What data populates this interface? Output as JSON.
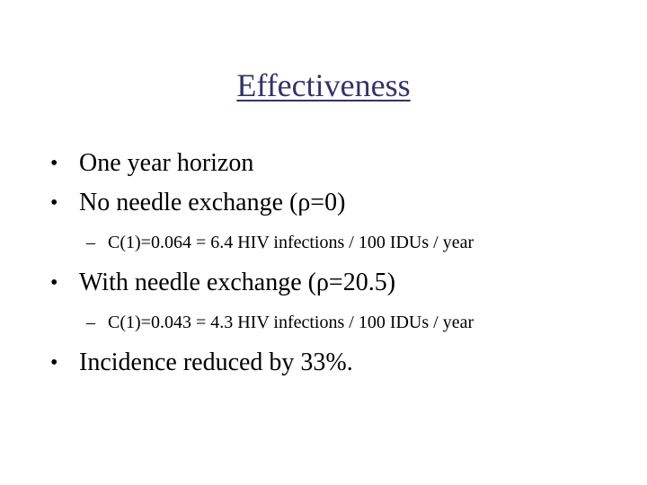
{
  "slide": {
    "title": "Effectiveness",
    "bullets": [
      {
        "level": 1,
        "marker": "•",
        "text": "One year horizon"
      },
      {
        "level": 1,
        "marker": "•",
        "text": "No needle exchange (ρ=0)"
      },
      {
        "level": 2,
        "marker": "–",
        "text": "C(1)=0.064 = 6.4 HIV infections / 100 IDUs / year"
      },
      {
        "level": 1,
        "marker": "•",
        "text": "With needle exchange (ρ=20.5)"
      },
      {
        "level": 2,
        "marker": "–",
        "text": "C(1)=0.043 = 4.3 HIV infections / 100 IDUs / year"
      },
      {
        "level": 1,
        "marker": "•",
        "text": "Incidence reduced by 33%."
      }
    ]
  },
  "colors": {
    "title": "#333366",
    "body": "#000000",
    "background": "#ffffff"
  }
}
